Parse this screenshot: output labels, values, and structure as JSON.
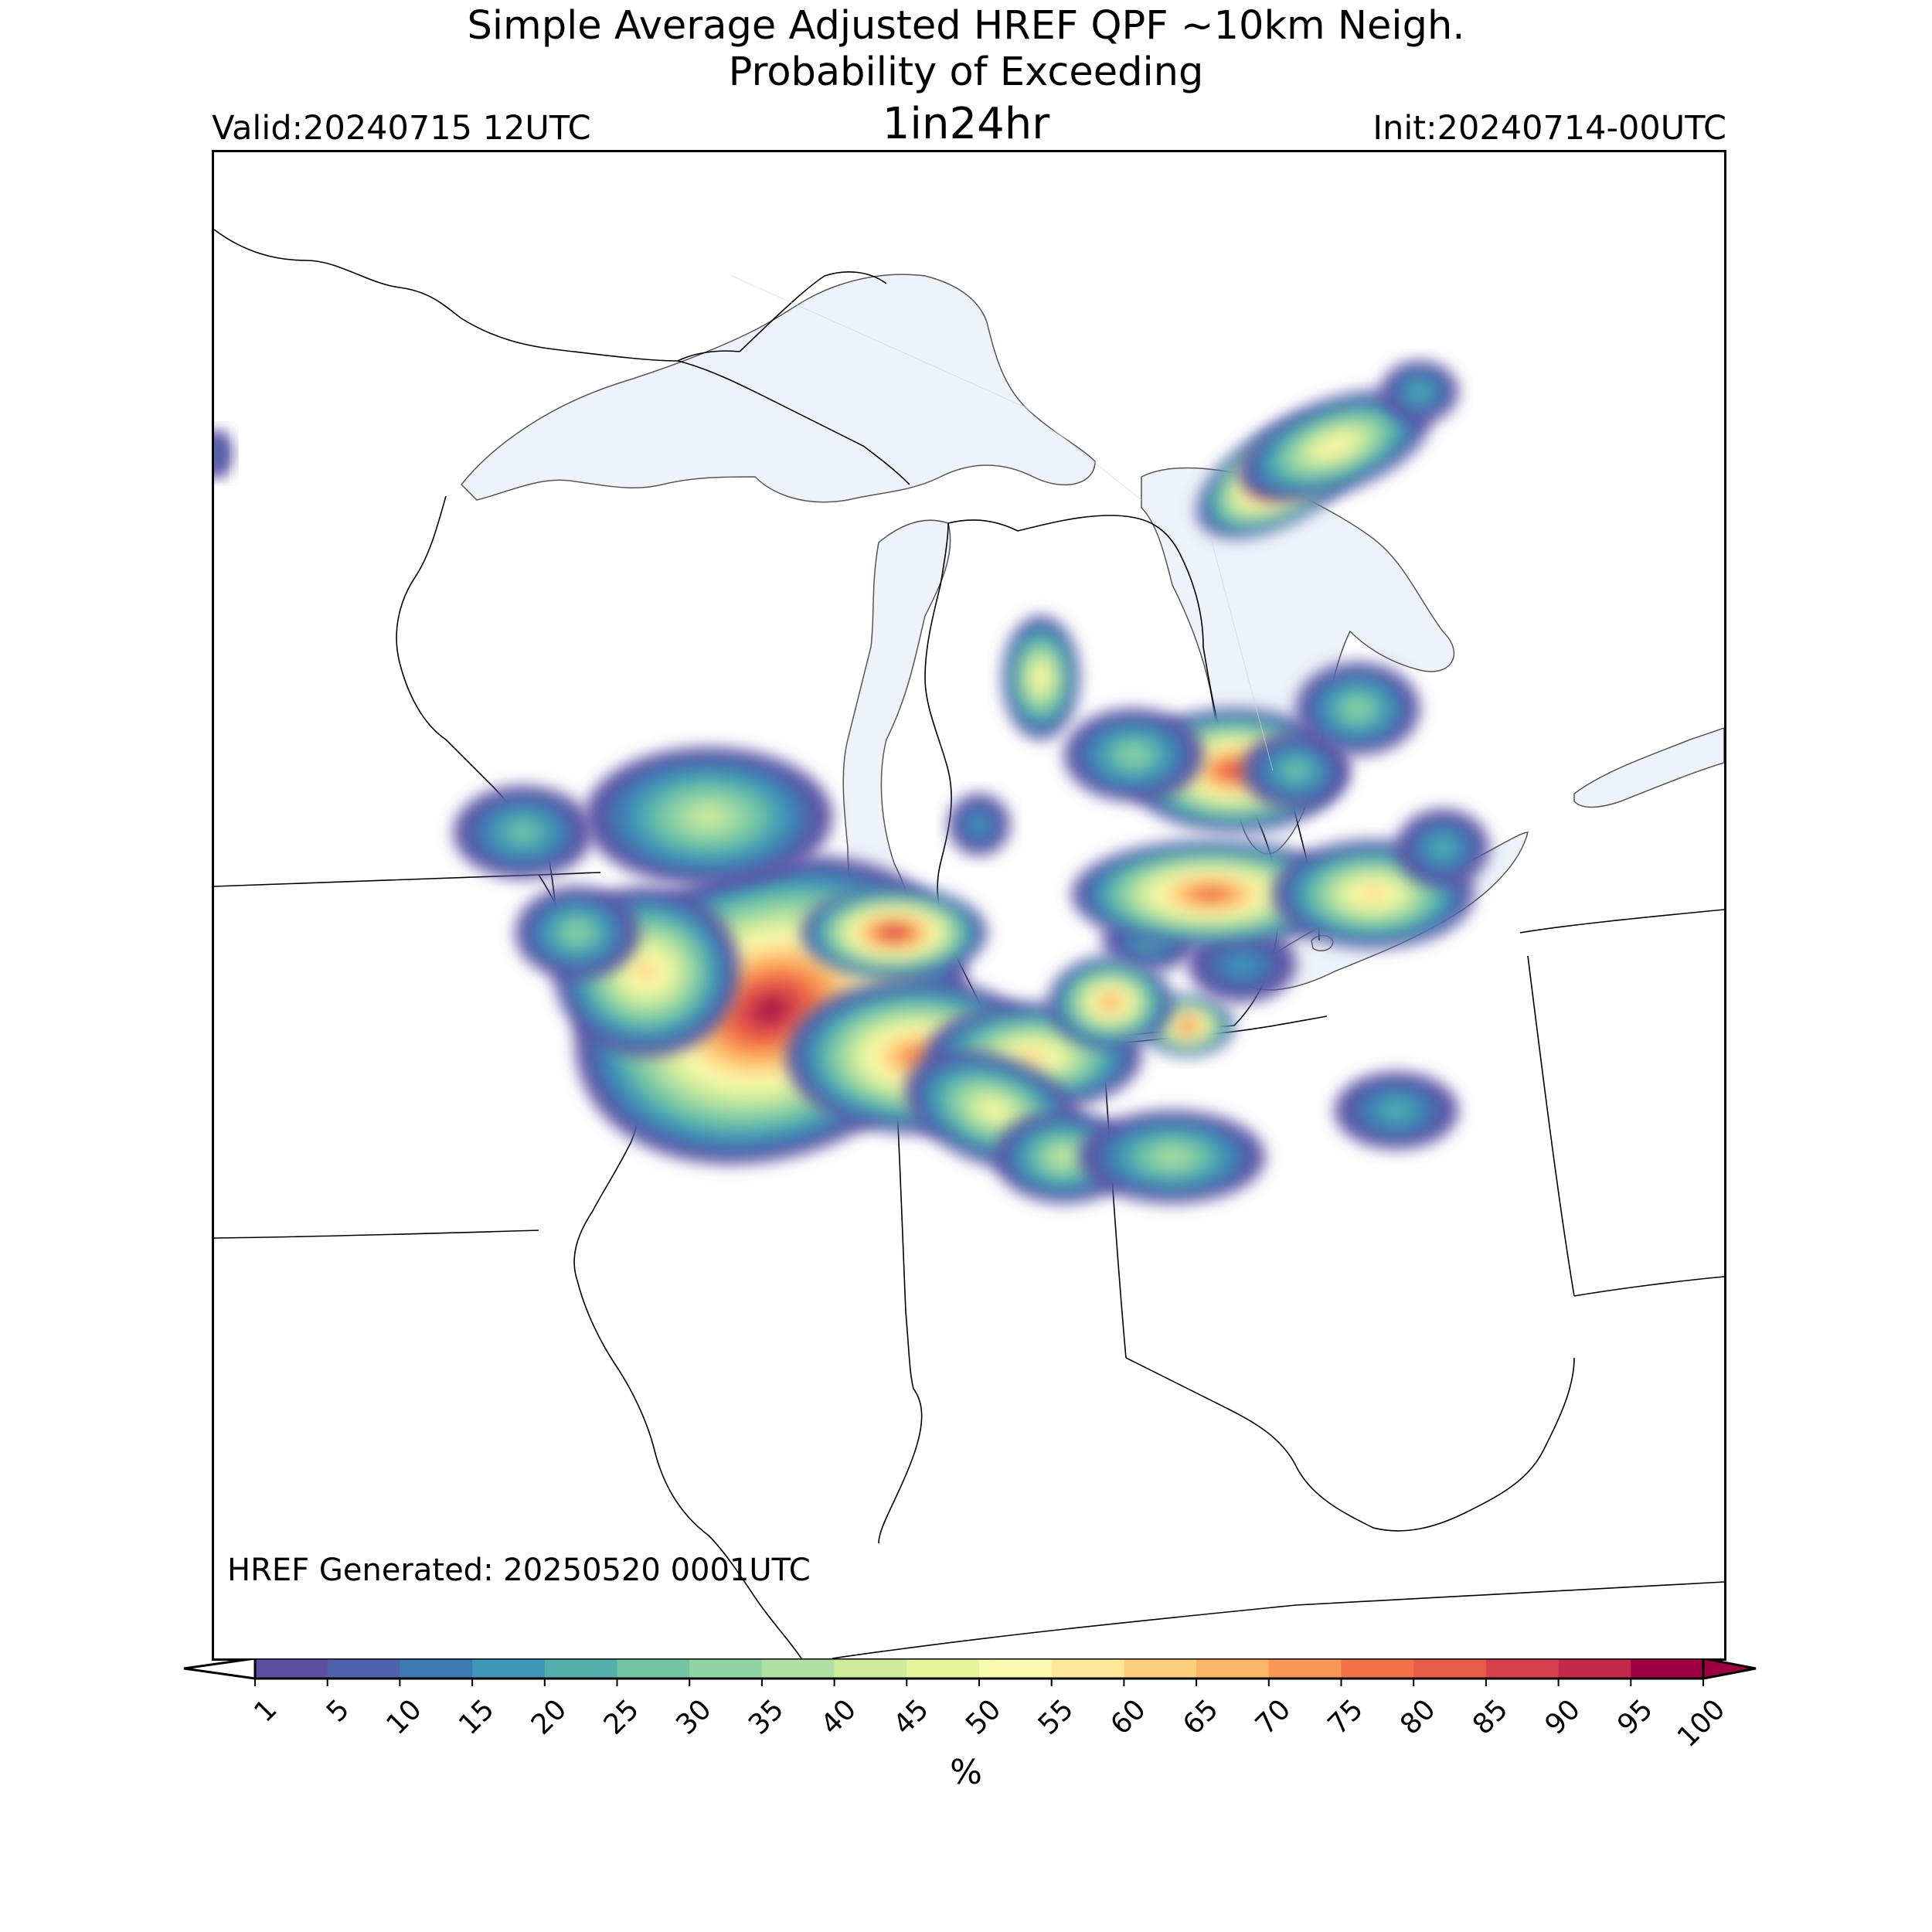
{
  "title": {
    "line1": "Simple Average Adjusted HREF QPF ~10km Neigh.",
    "line2": "Probability of Exceeding",
    "line3": "1in24hr"
  },
  "valid": "Valid:20240715 12UTC",
  "init": "Init:20240714-00UTC",
  "generated": "HREF Generated: 20250520 0001UTC",
  "colorbar": {
    "unit": "%",
    "ticks": [
      "1",
      "5",
      "10",
      "15",
      "20",
      "25",
      "30",
      "35",
      "40",
      "45",
      "50",
      "55",
      "60",
      "65",
      "70",
      "75",
      "80",
      "85",
      "90",
      "95",
      "100"
    ],
    "colors": [
      "#5e4fa2",
      "#4f61aa",
      "#3d7ab4",
      "#3f96b7",
      "#55b0ad",
      "#72c6a4",
      "#91d4a4",
      "#b0dfa2",
      "#cfec9d",
      "#e7f59a",
      "#f7fbb0",
      "#fee796",
      "#fed07e",
      "#fdb567",
      "#fa9656",
      "#f47346",
      "#e85c47",
      "#d83f4e",
      "#c2294a",
      "#9e0142"
    ],
    "under_color": "#ffffff",
    "over_color": "#9e0142"
  },
  "map": {
    "lake_fill": "#eef3f9",
    "line_color": "#000000",
    "region": "Upper Midwest / Great Lakes"
  }
}
